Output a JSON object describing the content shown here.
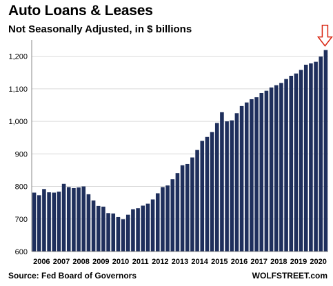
{
  "chart_data": {
    "type": "bar",
    "title": "Auto Loans & Leases",
    "subtitle": "Not Seasonally Adjusted, in $ billions",
    "xlabel": "",
    "ylabel": "",
    "ylim": [
      600,
      1250
    ],
    "yticks": [
      600,
      700,
      800,
      900,
      "1,000",
      "1,100",
      "1,200"
    ],
    "ytick_values": [
      600,
      700,
      800,
      900,
      1000,
      1100,
      1200
    ],
    "xtick_labels": [
      "2006",
      "2007",
      "2008",
      "2009",
      "2010",
      "2011",
      "2012",
      "2013",
      "2014",
      "2015",
      "2016",
      "2017",
      "2018",
      "2019",
      "2020"
    ],
    "grid": true,
    "bar_color": "#1f2f5c",
    "annotation": {
      "type": "arrow",
      "color": "#d9230f",
      "points_to": "last bar"
    },
    "categories": [
      "2006Q1",
      "2006Q2",
      "2006Q3",
      "2006Q4",
      "2007Q1",
      "2007Q2",
      "2007Q3",
      "2007Q4",
      "2008Q1",
      "2008Q2",
      "2008Q3",
      "2008Q4",
      "2009Q1",
      "2009Q2",
      "2009Q3",
      "2009Q4",
      "2010Q1",
      "2010Q2",
      "2010Q3",
      "2010Q4",
      "2011Q1",
      "2011Q2",
      "2011Q3",
      "2011Q4",
      "2012Q1",
      "2012Q2",
      "2012Q3",
      "2012Q4",
      "2013Q1",
      "2013Q2",
      "2013Q3",
      "2013Q4",
      "2014Q1",
      "2014Q2",
      "2014Q3",
      "2014Q4",
      "2015Q1",
      "2015Q2",
      "2015Q3",
      "2015Q4",
      "2016Q1",
      "2016Q2",
      "2016Q3",
      "2016Q4",
      "2017Q1",
      "2017Q2",
      "2017Q3",
      "2017Q4",
      "2018Q1",
      "2018Q2",
      "2018Q3",
      "2018Q4",
      "2019Q1",
      "2019Q2",
      "2019Q3",
      "2019Q4",
      "2020Q1",
      "2020Q2",
      "2020Q3",
      "2020Q4"
    ],
    "values": [
      781,
      773,
      792,
      782,
      781,
      784,
      808,
      798,
      795,
      797,
      800,
      776,
      757,
      740,
      738,
      718,
      717,
      706,
      699,
      713,
      730,
      733,
      741,
      747,
      760,
      779,
      798,
      803,
      822,
      841,
      865,
      869,
      889,
      912,
      940,
      952,
      967,
      995,
      1028,
      1000,
      1003,
      1025,
      1047,
      1058,
      1068,
      1074,
      1087,
      1094,
      1104,
      1111,
      1118,
      1130,
      1140,
      1147,
      1158,
      1174,
      1178,
      1183,
      1199,
      1219
    ]
  },
  "footer": {
    "source": "Source: Fed Board of Governors",
    "brand": "WOLFSTREET.com"
  }
}
